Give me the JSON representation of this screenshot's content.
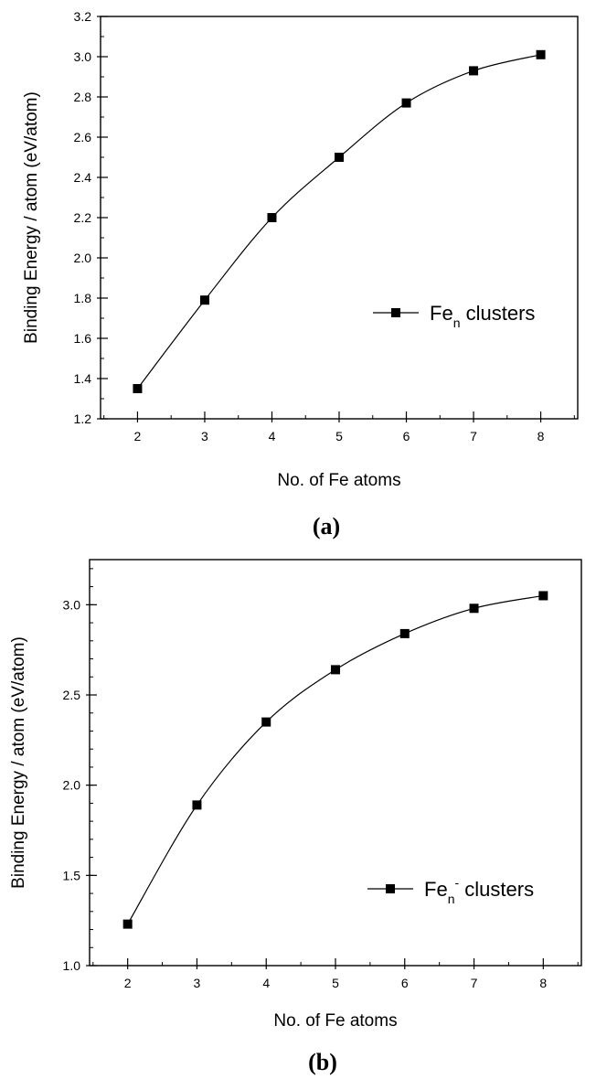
{
  "chart_data": [
    {
      "type": "line",
      "panel_label": "(a)",
      "xlabel": "No. of Fe atoms",
      "ylabel": "Binding Energy / atom (eV/atom)",
      "x": [
        2,
        3,
        4,
        5,
        6,
        7,
        8
      ],
      "xlim": [
        1.45,
        8.55
      ],
      "xticks": [
        2,
        3,
        4,
        5,
        6,
        7,
        8
      ],
      "ylim": [
        1.2,
        3.2
      ],
      "yticks": [
        1.2,
        1.4,
        1.6,
        1.8,
        2.0,
        2.2,
        2.4,
        2.6,
        2.8,
        3.0,
        3.2
      ],
      "ytick_labels": [
        "1.2",
        "1.4",
        "1.6",
        "1.8",
        "2.0",
        "2.2",
        "2.4",
        "2.6",
        "2.8",
        "3.0",
        "3.2"
      ],
      "ytick_minor_step": 0.1,
      "series": [
        {
          "name": "Fen clusters",
          "legend": {
            "base": "Fe",
            "sub": "n",
            "sup": "",
            "rest": " clusters"
          },
          "values": [
            1.35,
            1.79,
            2.2,
            2.5,
            2.77,
            2.93,
            3.01
          ],
          "color": "#000000",
          "marker": "square"
        }
      ],
      "legend_position": "right",
      "grid": false
    },
    {
      "type": "line",
      "panel_label": "(b)",
      "xlabel": "No. of Fe atoms",
      "ylabel": "Binding Energy / atom (eV/atom)",
      "x": [
        2,
        3,
        4,
        5,
        6,
        7,
        8
      ],
      "xlim": [
        1.45,
        8.55
      ],
      "xticks": [
        2,
        3,
        4,
        5,
        6,
        7,
        8
      ],
      "ylim": [
        1.0,
        3.25
      ],
      "yticks": [
        1.0,
        1.5,
        2.0,
        2.5,
        3.0
      ],
      "ytick_labels": [
        "1.0",
        "1.5",
        "2.0",
        "2.5",
        "3.0"
      ],
      "ytick_minor_step": 0.1,
      "series": [
        {
          "name": "Fen- clusters",
          "legend": {
            "base": "Fe",
            "sub": "n",
            "sup": "-",
            "rest": " clusters"
          },
          "values": [
            1.23,
            1.89,
            2.35,
            2.64,
            2.84,
            2.98,
            3.05
          ],
          "color": "#000000",
          "marker": "square"
        }
      ],
      "legend_position": "right",
      "grid": false
    }
  ]
}
